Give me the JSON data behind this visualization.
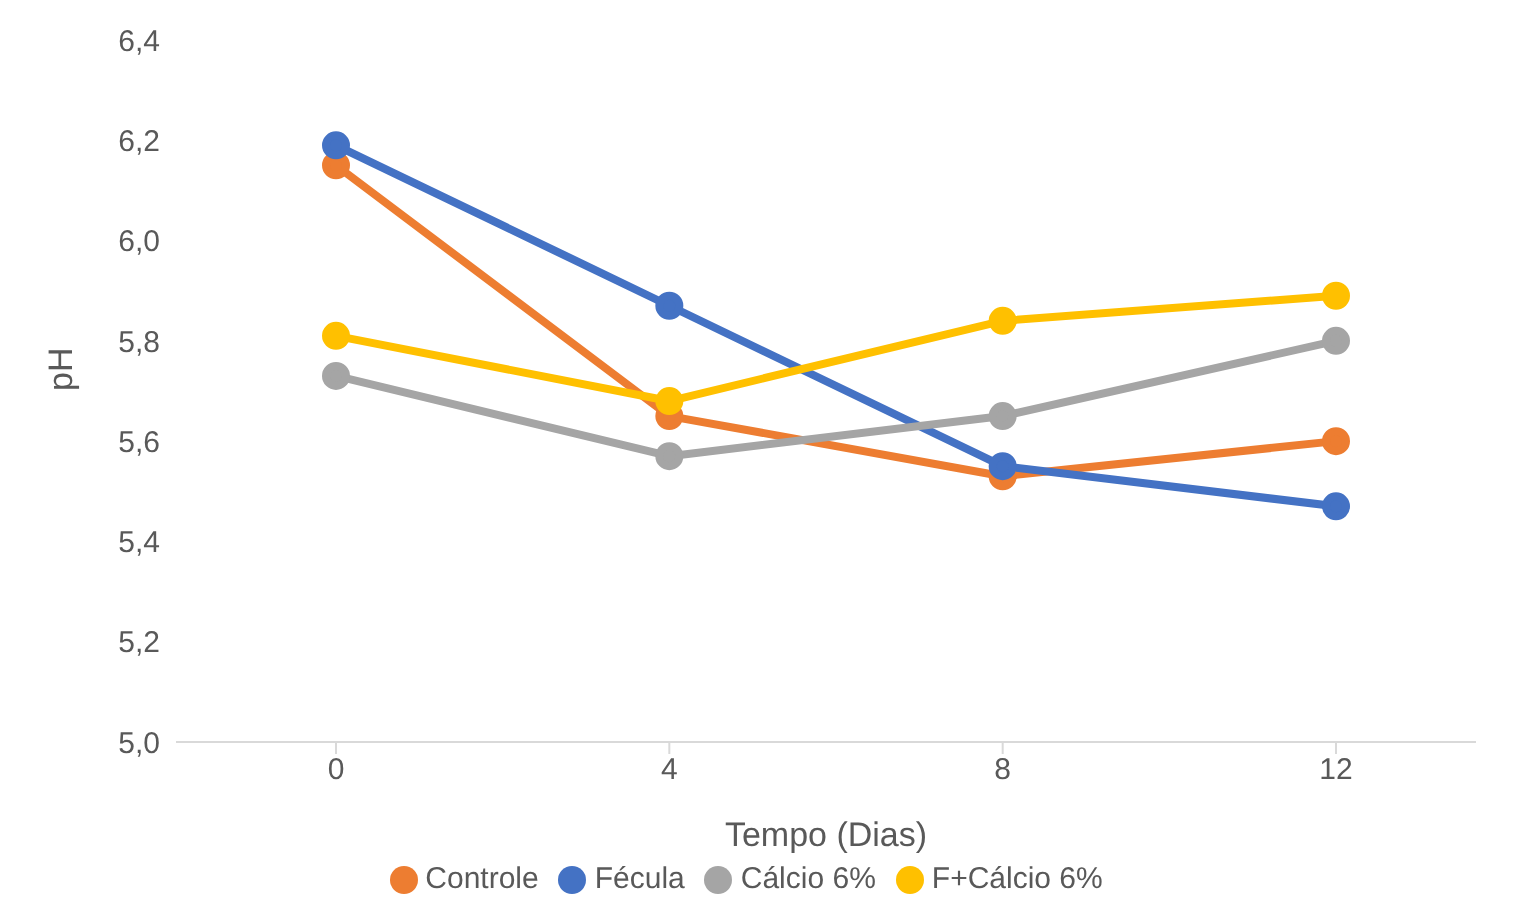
{
  "chart_data": {
    "type": "line",
    "xlabel": "Tempo (Dias)",
    "ylabel": "pH",
    "categories": [
      "0",
      "4",
      "8",
      "12"
    ],
    "series": [
      {
        "name": "Controle",
        "color": "#ed7d31",
        "values": [
          6.15,
          5.65,
          5.53,
          5.6
        ]
      },
      {
        "name": "Fécula",
        "color": "#4472c4",
        "values": [
          6.19,
          5.87,
          5.55,
          5.47
        ]
      },
      {
        "name": "Cálcio 6%",
        "color": "#a5a5a5",
        "values": [
          5.73,
          5.57,
          5.65,
          5.8
        ]
      },
      {
        "name": "F+Cálcio 6%",
        "color": "#ffc000",
        "values": [
          5.81,
          5.68,
          5.84,
          5.89
        ]
      }
    ],
    "ylim": [
      5.0,
      6.4
    ],
    "yticks": [
      {
        "value": 5.0,
        "label": "5,0"
      },
      {
        "value": 5.2,
        "label": "5,2"
      },
      {
        "value": 5.4,
        "label": "5,4"
      },
      {
        "value": 5.6,
        "label": "5,6"
      },
      {
        "value": 5.8,
        "label": "5,8"
      },
      {
        "value": 6.0,
        "label": "6,0"
      },
      {
        "value": 6.2,
        "label": "6,2"
      },
      {
        "value": 6.4,
        "label": "6,4"
      }
    ],
    "grid": false,
    "legend": "bottom",
    "marker": "circle",
    "line_style": "solid"
  }
}
